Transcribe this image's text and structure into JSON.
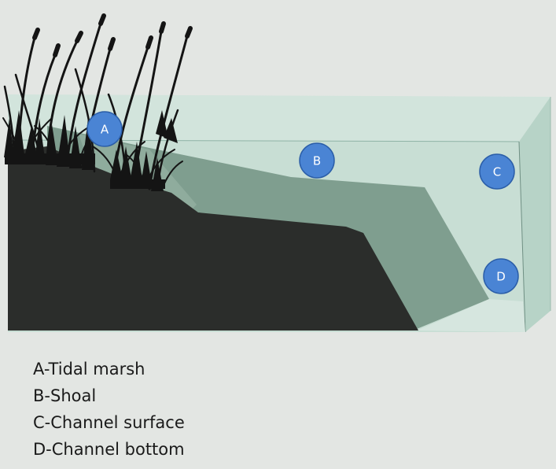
{
  "markers": [
    {
      "letter": "A",
      "color": "#4a84d4"
    },
    {
      "letter": "B",
      "color": "#4a84d4"
    },
    {
      "letter": "C",
      "color": "#4a84d4"
    },
    {
      "letter": "D",
      "color": "#4a84d4"
    }
  ],
  "legend": [
    "A-Tidal marsh",
    "B-Shoal",
    "C-Channel surface",
    "D-Channel bottom"
  ],
  "colors": {
    "background": "#e3e6e3",
    "water": "#c9dfd6",
    "shoal": "#7f9e8f",
    "marsh_ground": "#2b2d2b",
    "vegetation": "#141414"
  }
}
